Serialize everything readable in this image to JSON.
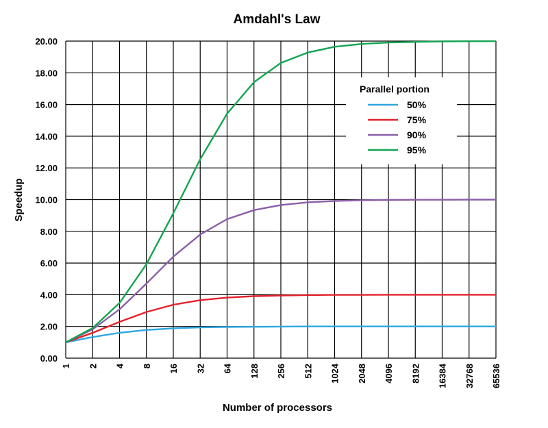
{
  "chart_data": {
    "type": "line",
    "title": "Amdahl's Law",
    "xlabel": "Number of processors",
    "ylabel": "Speedup",
    "x_scale": "log2",
    "x": [
      1,
      2,
      4,
      8,
      16,
      32,
      64,
      128,
      256,
      512,
      1024,
      2048,
      4096,
      8192,
      16384,
      32768,
      65536
    ],
    "x_tick_labels": [
      "1",
      "2",
      "4",
      "8",
      "16",
      "32",
      "64",
      "128",
      "256",
      "512",
      "1024",
      "2048",
      "4096",
      "8192",
      "16384",
      "32768",
      "65536"
    ],
    "ylim": [
      0,
      20
    ],
    "y_ticks": [
      0,
      2,
      4,
      6,
      8,
      10,
      12,
      14,
      16,
      18,
      20
    ],
    "y_tick_labels": [
      "0.00",
      "2.00",
      "4.00",
      "6.00",
      "8.00",
      "10.00",
      "12.00",
      "14.00",
      "16.00",
      "18.00",
      "20.00"
    ],
    "grid": true,
    "legend": {
      "title": "Parallel portion",
      "placement": "top-right"
    },
    "series": [
      {
        "name": "50%",
        "color": "#2ea7e0",
        "values": [
          1.0,
          1.33,
          1.6,
          1.78,
          1.88,
          1.94,
          1.97,
          1.98,
          1.99,
          2.0,
          2.0,
          2.0,
          2.0,
          2.0,
          2.0,
          2.0,
          2.0
        ]
      },
      {
        "name": "75%",
        "color": "#e3212b",
        "values": [
          1.0,
          1.6,
          2.29,
          2.91,
          3.37,
          3.66,
          3.82,
          3.91,
          3.95,
          3.98,
          3.99,
          3.99,
          4.0,
          4.0,
          4.0,
          4.0,
          4.0
        ]
      },
      {
        "name": "90%",
        "color": "#8a5ea8",
        "values": [
          1.0,
          1.82,
          3.08,
          4.71,
          6.4,
          7.8,
          8.77,
          9.34,
          9.66,
          9.83,
          9.91,
          9.96,
          9.98,
          9.99,
          9.99,
          10.0,
          10.0
        ]
      },
      {
        "name": "95%",
        "color": "#13a452",
        "values": [
          1.0,
          1.9,
          3.48,
          5.93,
          9.14,
          12.55,
          15.42,
          17.41,
          18.62,
          19.28,
          19.64,
          19.82,
          19.91,
          19.95,
          19.98,
          19.99,
          19.99
        ]
      }
    ]
  }
}
